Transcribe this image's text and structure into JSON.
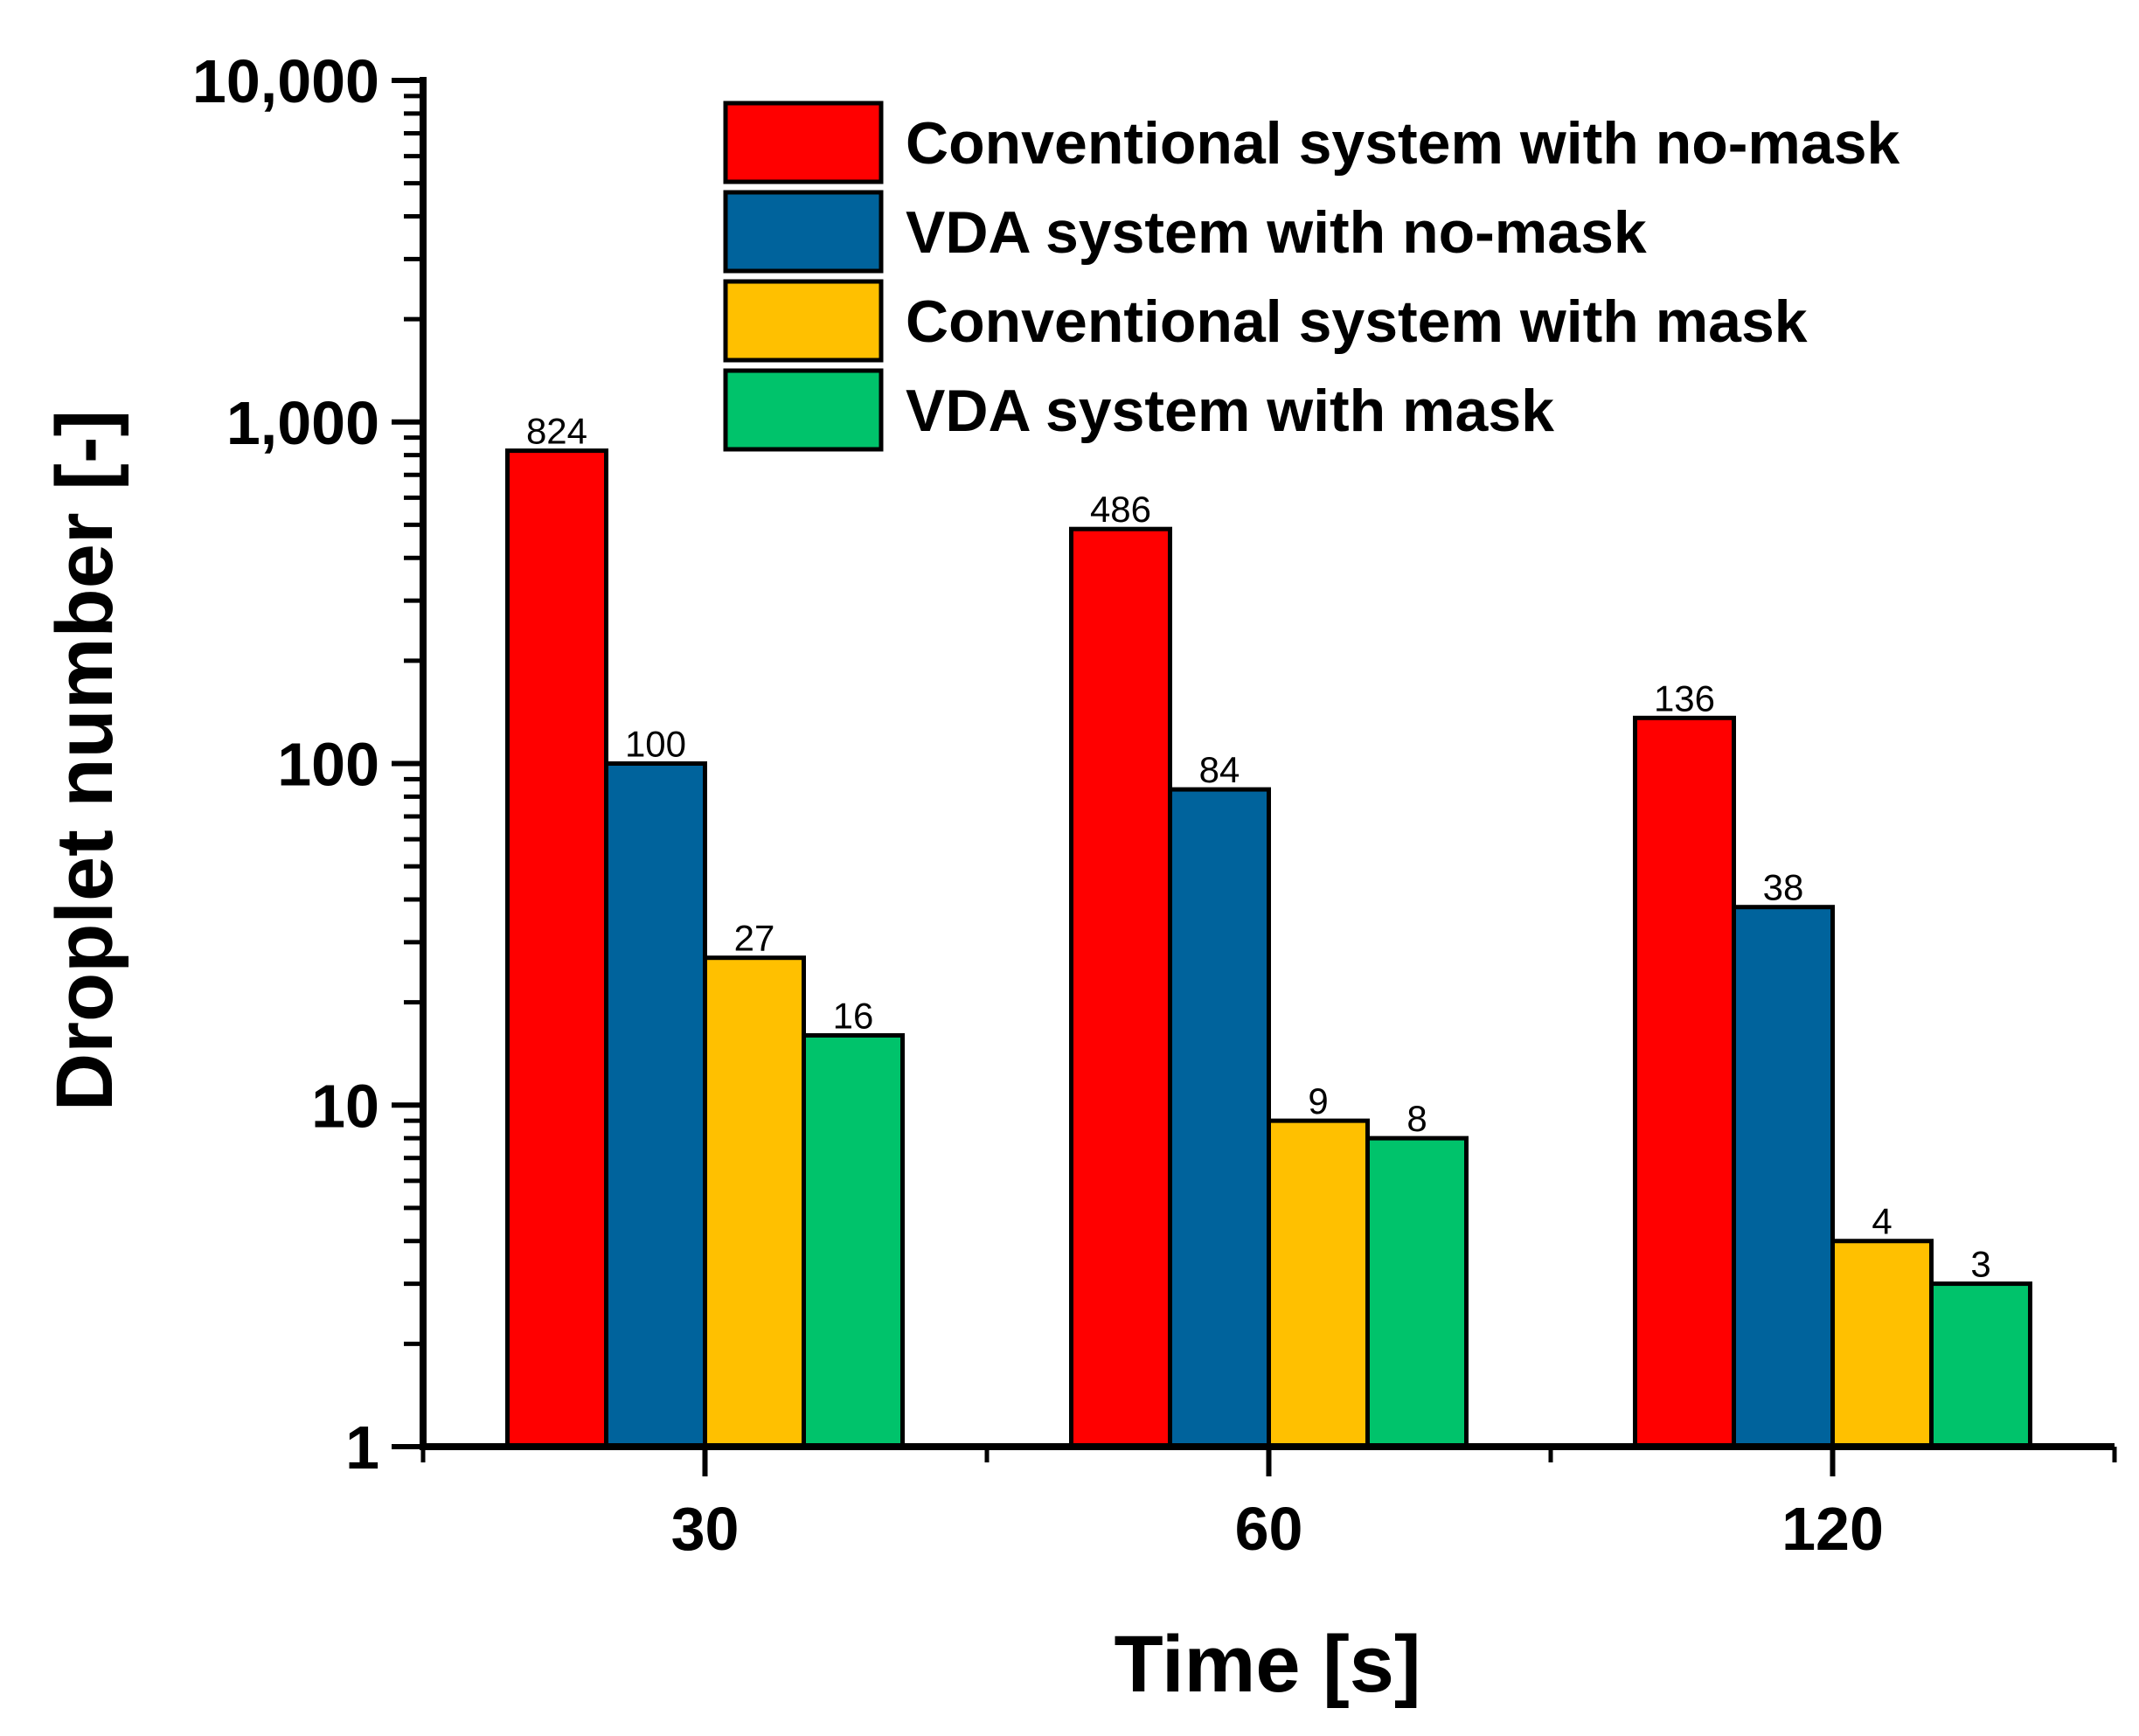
{
  "chart_data": {
    "type": "bar",
    "title": "",
    "xlabel": "Time [s]",
    "ylabel": "Droplet number [-]",
    "yscale": "log",
    "ylim": [
      1,
      10000
    ],
    "yticks": [
      {
        "value": 1,
        "label": "1"
      },
      {
        "value": 10,
        "label": "10"
      },
      {
        "value": 100,
        "label": "100"
      },
      {
        "value": 1000,
        "label": "1,000"
      },
      {
        "value": 10000,
        "label": "10,000"
      }
    ],
    "categories": [
      "30",
      "60",
      "120"
    ],
    "legend_position": "top-right",
    "series": [
      {
        "name": "Conventional system with no-mask",
        "color": "#ff0000",
        "values": [
          824,
          486,
          136
        ]
      },
      {
        "name": "VDA system with no-mask",
        "color": "#00639c",
        "values": [
          100,
          84,
          38
        ]
      },
      {
        "name": "Conventional system with mask",
        "color": "#ffc000",
        "values": [
          27,
          9,
          4
        ]
      },
      {
        "name": "VDA system with mask",
        "color": "#00c36b",
        "values": [
          16,
          8,
          3
        ]
      }
    ]
  }
}
